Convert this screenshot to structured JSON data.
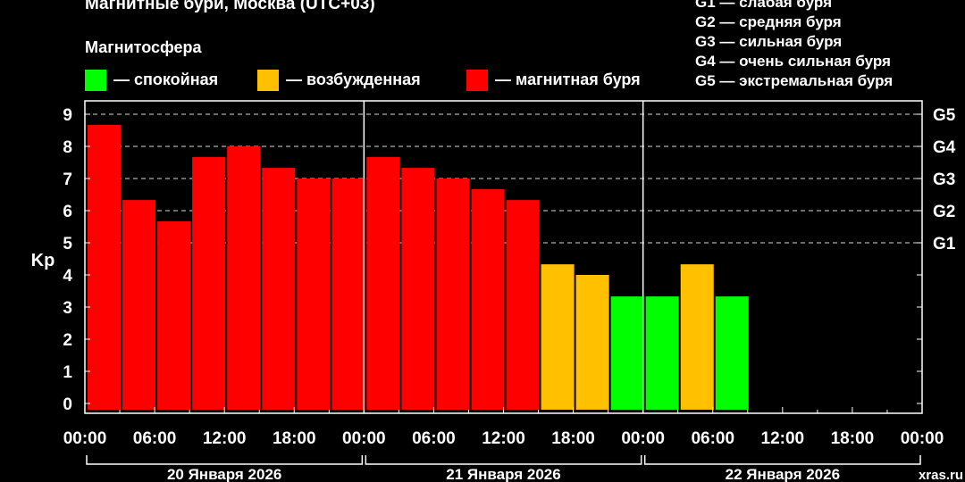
{
  "header": {
    "title": "Магнитные бури, Москва (UTC+03)",
    "subtitle": "Магнитосфера"
  },
  "legend": [
    {
      "label": "— спокойная",
      "color": "#00ff00"
    },
    {
      "label": "— возбужденная",
      "color": "#ffc000"
    },
    {
      "label": "— магнитная буря",
      "color": "#ff0000"
    }
  ],
  "storm_levels": [
    "G1 — слабая буря",
    "G2 — средняя буря",
    "G3 — сильная буря",
    "G4 — очень сильная буря",
    "G5 — экстремальная буря"
  ],
  "watermark": "xras.ru",
  "chart_data": {
    "type": "bar",
    "ylabel": "Kp",
    "ylim": [
      0,
      9
    ],
    "yticks": [
      "0",
      "1",
      "2",
      "3",
      "4",
      "5",
      "6",
      "7",
      "8",
      "9"
    ],
    "right_ticks": [
      {
        "label": "G1",
        "value": 5
      },
      {
        "label": "G2",
        "value": 6
      },
      {
        "label": "G3",
        "value": 7
      },
      {
        "label": "G4",
        "value": 8
      },
      {
        "label": "G5",
        "value": 9
      }
    ],
    "xtick_labels": [
      "00:00",
      "06:00",
      "12:00",
      "18:00",
      "00:00",
      "06:00",
      "12:00",
      "18:00",
      "00:00",
      "06:00",
      "12:00",
      "18:00",
      "00:00"
    ],
    "days": [
      "20 Января 2026",
      "21 Января 2026",
      "22 Января 2026"
    ],
    "slots_per_day": 8,
    "bars": [
      {
        "slot": 0,
        "kp": 8.67,
        "level": "storm"
      },
      {
        "slot": 1,
        "kp": 6.33,
        "level": "storm"
      },
      {
        "slot": 2,
        "kp": 5.67,
        "level": "storm"
      },
      {
        "slot": 3,
        "kp": 7.67,
        "level": "storm"
      },
      {
        "slot": 4,
        "kp": 8.0,
        "level": "storm"
      },
      {
        "slot": 5,
        "kp": 7.33,
        "level": "storm"
      },
      {
        "slot": 6,
        "kp": 7.0,
        "level": "storm"
      },
      {
        "slot": 7,
        "kp": 7.0,
        "level": "storm"
      },
      {
        "slot": 8,
        "kp": 7.67,
        "level": "storm"
      },
      {
        "slot": 9,
        "kp": 7.33,
        "level": "storm"
      },
      {
        "slot": 10,
        "kp": 7.0,
        "level": "storm"
      },
      {
        "slot": 11,
        "kp": 6.67,
        "level": "storm"
      },
      {
        "slot": 12,
        "kp": 6.33,
        "level": "storm"
      },
      {
        "slot": 13,
        "kp": 4.33,
        "level": "active"
      },
      {
        "slot": 14,
        "kp": 4.0,
        "level": "active"
      },
      {
        "slot": 15,
        "kp": 3.33,
        "level": "quiet"
      },
      {
        "slot": 16,
        "kp": 3.33,
        "level": "quiet"
      },
      {
        "slot": 17,
        "kp": 4.33,
        "level": "active"
      },
      {
        "slot": 18,
        "kp": 3.33,
        "level": "quiet"
      }
    ],
    "level_colors": {
      "quiet": "#00ff00",
      "active": "#ffc000",
      "storm": "#ff0000"
    }
  }
}
